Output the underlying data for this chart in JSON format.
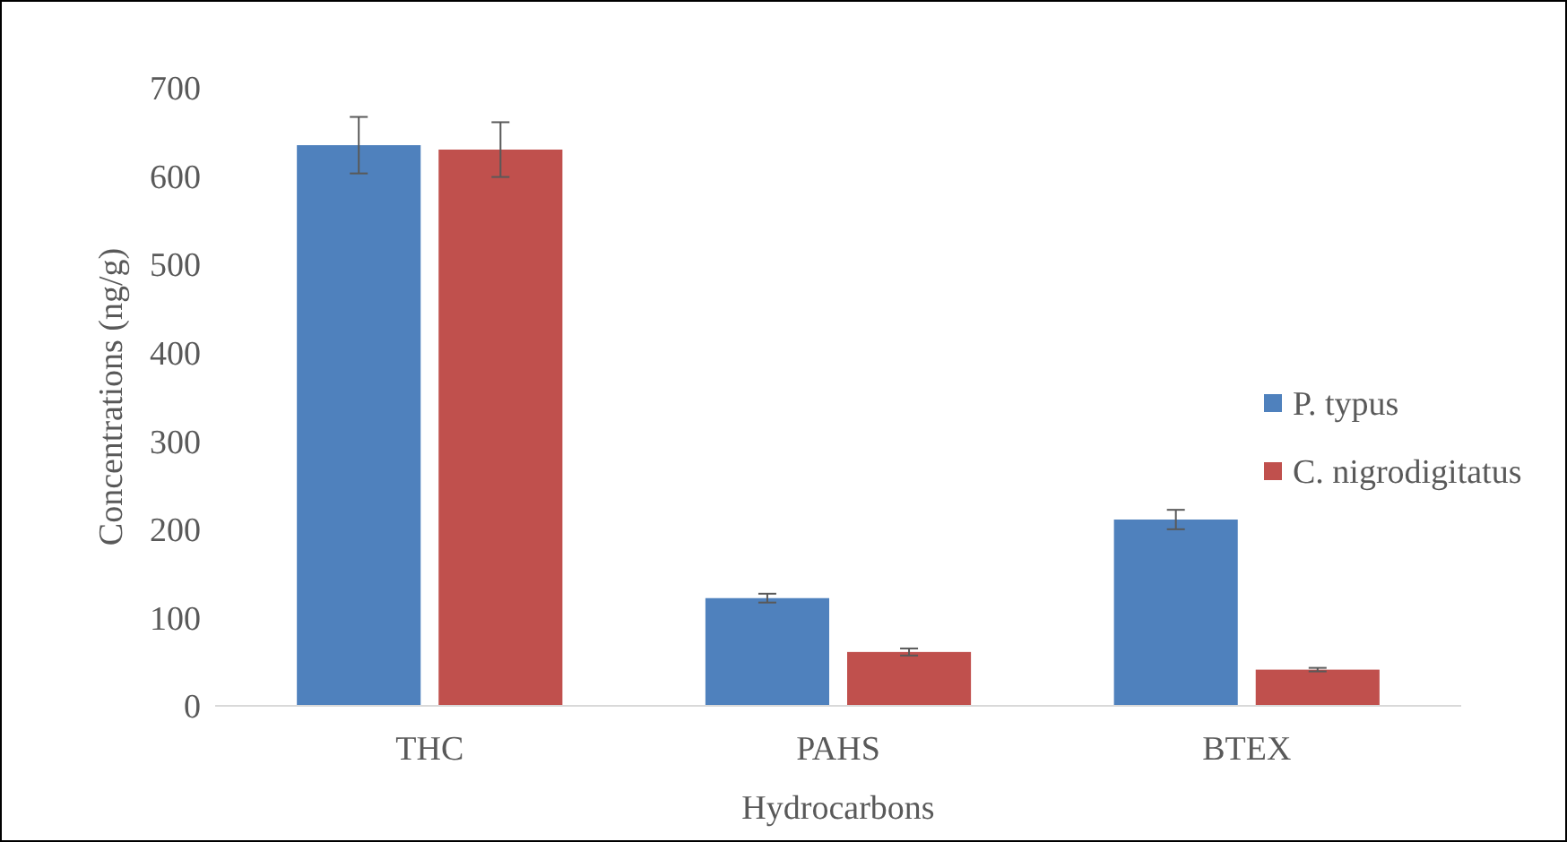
{
  "chart_data": {
    "type": "bar",
    "xlabel": "Hydrocarbons",
    "ylabel": "Concentrations (ng/g)",
    "categories": [
      "THC",
      "PAHS",
      "BTEX"
    ],
    "series": [
      {
        "name": "P. typus",
        "color": "#4f81bd",
        "values": [
          635,
          122,
          211
        ],
        "errors": [
          32,
          5,
          11
        ]
      },
      {
        "name": "C. nigrodigitatus",
        "color": "#c0504d",
        "values": [
          630,
          61,
          41
        ],
        "errors": [
          31,
          4,
          2
        ]
      }
    ],
    "ylim": [
      0,
      700
    ],
    "yticks": [
      0,
      100,
      200,
      300,
      400,
      500,
      600,
      700
    ],
    "grid": false,
    "legend": "right"
  }
}
